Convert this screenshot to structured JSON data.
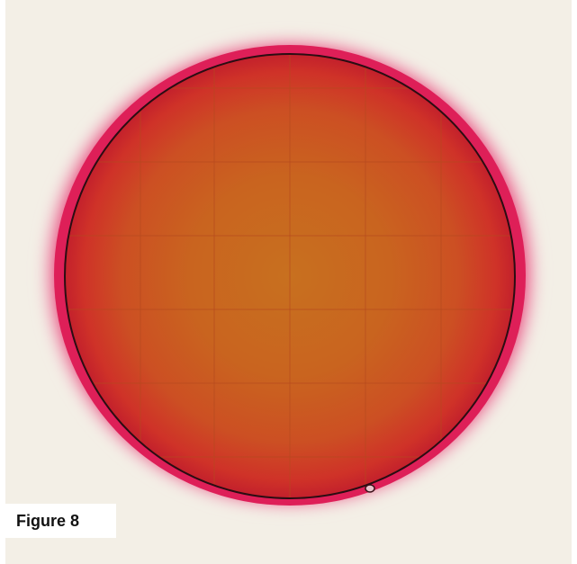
{
  "figure": {
    "caption": "Figure 8"
  },
  "photo": {
    "subject-icon": "petri-film-plate",
    "colors": {
      "background": "#f3efe6",
      "halo": "#e21d5c",
      "rim": "#b0182c",
      "center": "#c9641f",
      "edge": "#d0262a",
      "grid": "#b84a22",
      "outline": "#2a0d12"
    }
  }
}
